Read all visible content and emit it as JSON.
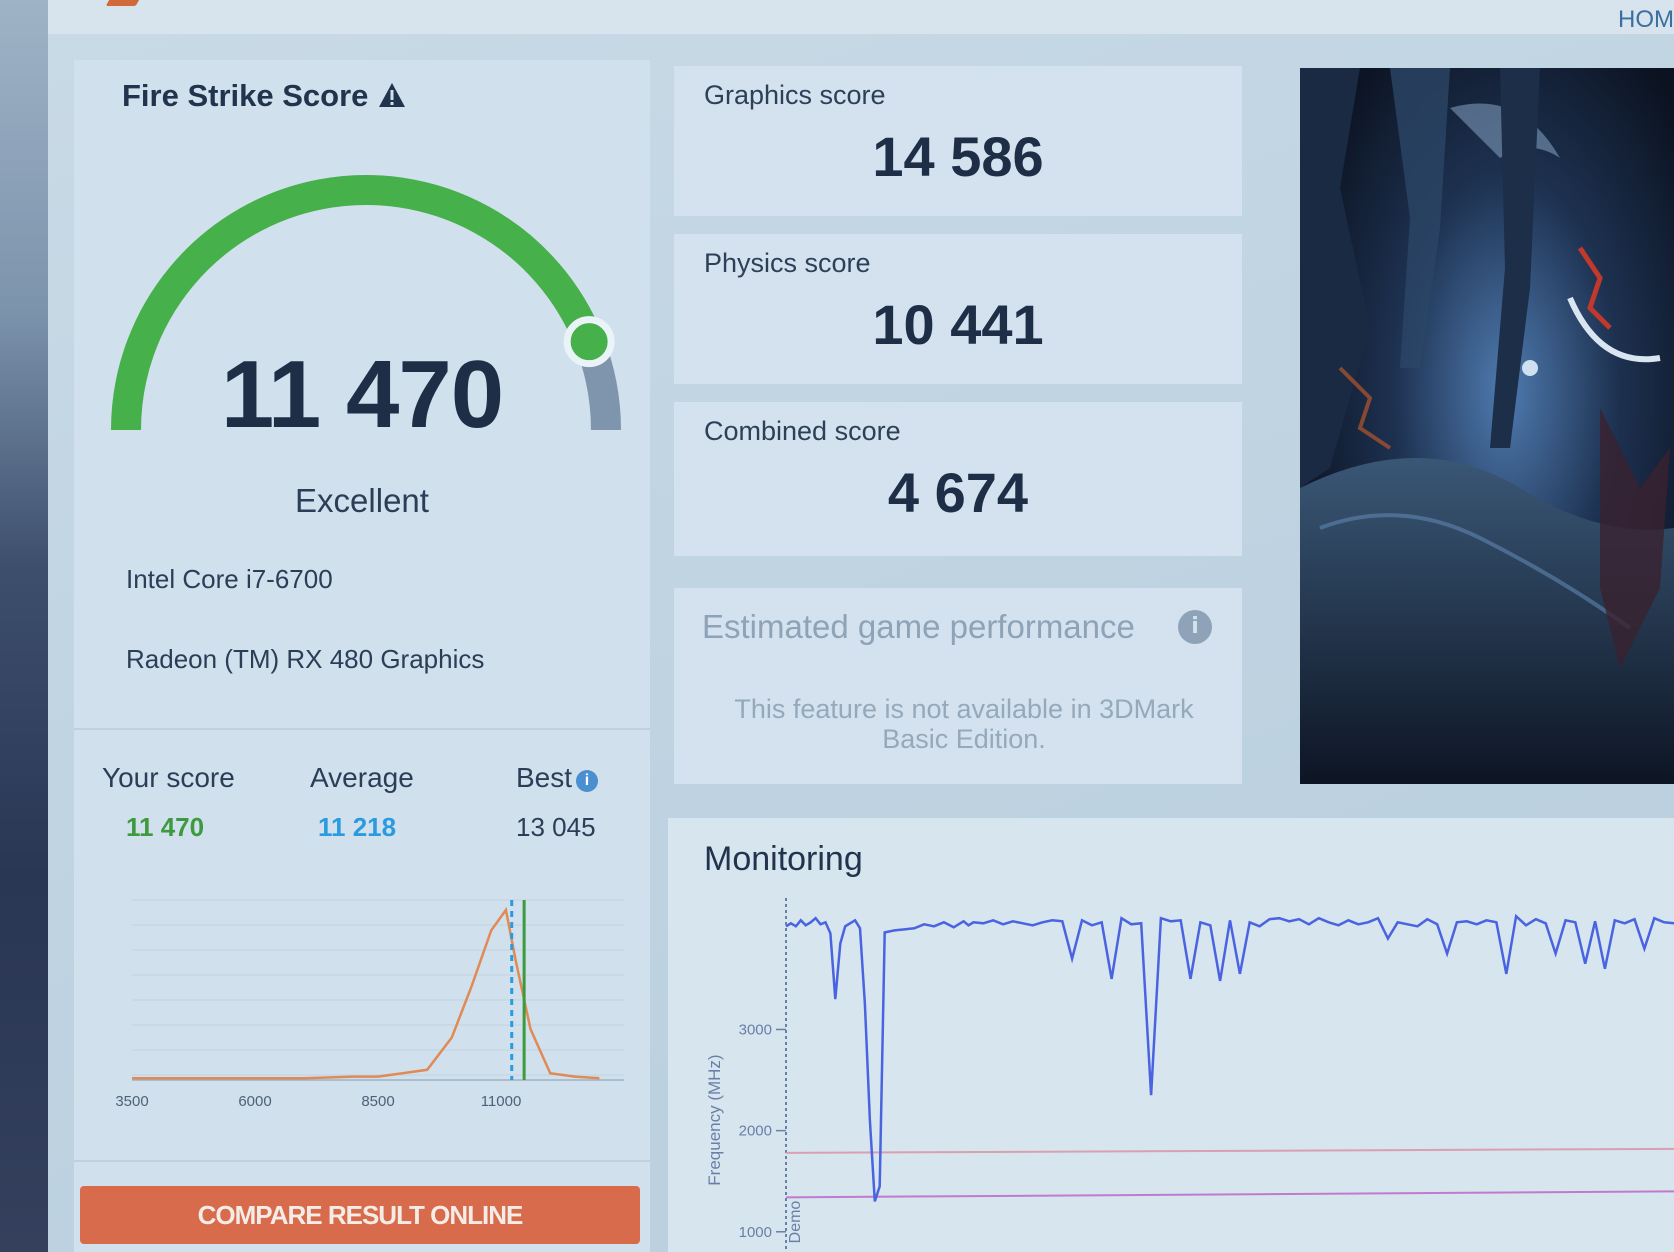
{
  "header": {
    "home_label": "HOM"
  },
  "score_panel": {
    "title": "Fire Strike Score",
    "warning_icon": "warning-triangle-icon",
    "overall_score": "11 470",
    "gauge_fraction": 0.88,
    "rating": "Excellent",
    "cpu": "Intel Core i7-6700",
    "gpu": "Radeon (TM) RX 480 Graphics",
    "comparison": {
      "your_score_label": "Your score",
      "your_score_value": "11 470",
      "average_label": "Average",
      "average_value": "11 218",
      "best_label": "Best",
      "best_value": "13 045",
      "best_info_icon": "info-icon"
    },
    "compare_button": "COMPARE RESULT ONLINE"
  },
  "sub_scores": [
    {
      "label": "Graphics score",
      "value": "14 586"
    },
    {
      "label": "Physics score",
      "value": "10 441"
    },
    {
      "label": "Combined score",
      "value": "4 674"
    }
  ],
  "estimated": {
    "title": "Estimated game performance",
    "info_icon": "info-icon",
    "message": "This feature is not available in 3DMark Basic Edition."
  },
  "monitoring": {
    "title": "Monitoring"
  },
  "colors": {
    "gauge_green": "#46b04a",
    "gauge_gray": "#7f95ad",
    "your_score": "#3d9a3f",
    "average": "#2b9be0",
    "compare_button": "#d86b4b",
    "dist_line": "#e08a55",
    "monitor_line": "#4a63e0"
  },
  "chart_data": [
    {
      "type": "line",
      "x_ticks": [
        "3500",
        "6000",
        "8500",
        "11000"
      ],
      "xlim": [
        3500,
        13500
      ],
      "x": [
        3500,
        5000,
        6000,
        7000,
        8000,
        8500,
        9000,
        9500,
        10000,
        10400,
        10800,
        11100,
        11300,
        11600,
        12000,
        12500,
        13000
      ],
      "values": [
        0.01,
        0.01,
        0.01,
        0.01,
        0.02,
        0.02,
        0.04,
        0.06,
        0.25,
        0.55,
        0.88,
        1.0,
        0.7,
        0.3,
        0.04,
        0.02,
        0.01
      ],
      "markers": {
        "your_score": 11470,
        "average": 11218
      }
    },
    {
      "type": "line",
      "ylabel": "Frequency (MHz)",
      "y_ticks": [
        "1000",
        "2000",
        "3000"
      ],
      "ylim": [
        800,
        4300
      ],
      "x_tick_labels": [
        "Demo"
      ],
      "x": [
        0,
        5,
        10,
        15,
        20,
        25,
        30,
        35,
        40,
        45,
        50,
        55,
        60,
        65,
        70,
        75,
        80,
        85,
        90,
        95,
        100,
        110,
        120,
        130,
        140,
        150,
        160,
        170,
        180,
        185,
        190,
        200,
        210,
        220,
        230,
        240,
        250,
        260,
        270,
        280,
        290,
        300,
        310,
        320,
        330,
        340,
        350,
        360,
        370,
        380,
        390,
        400,
        410,
        420,
        430,
        440,
        450,
        460,
        470,
        480,
        490,
        500,
        510,
        520,
        530,
        540,
        550,
        560,
        570,
        580,
        590,
        600,
        610,
        620,
        630,
        640,
        650,
        660,
        670,
        680,
        690,
        700,
        710,
        720,
        730,
        740,
        750,
        760,
        770,
        780,
        790,
        800,
        810,
        820,
        830,
        840,
        850,
        860,
        870,
        880,
        890,
        900
      ],
      "values": [
        4020,
        4050,
        4020,
        4080,
        4030,
        4060,
        4100,
        4040,
        4060,
        3950,
        3300,
        3850,
        4020,
        4050,
        4080,
        4000,
        3250,
        2100,
        1300,
        1450,
        3960,
        3980,
        3990,
        4000,
        4040,
        4020,
        4060,
        4010,
        4070,
        4030,
        4060,
        4050,
        4080,
        4040,
        4070,
        4050,
        4030,
        4060,
        4080,
        4070,
        3700,
        4080,
        4030,
        4060,
        3500,
        4100,
        4040,
        4050,
        2350,
        4100,
        4070,
        4080,
        3500,
        4060,
        4030,
        3480,
        4080,
        3550,
        4060,
        4020,
        4090,
        4100,
        4070,
        4090,
        4040,
        4100,
        4060,
        4030,
        4080,
        4040,
        4060,
        4100,
        3900,
        4060,
        4040,
        4020,
        4090,
        4040,
        3750,
        4060,
        4070,
        4040,
        4080,
        4060,
        3550,
        4120,
        4030,
        4090,
        4050,
        3750,
        4080,
        4060,
        3650,
        4070,
        3600,
        4080,
        4050,
        4090,
        3800,
        4100,
        4060,
        4050
      ],
      "reference_lines": [
        1780,
        1340
      ]
    }
  ]
}
